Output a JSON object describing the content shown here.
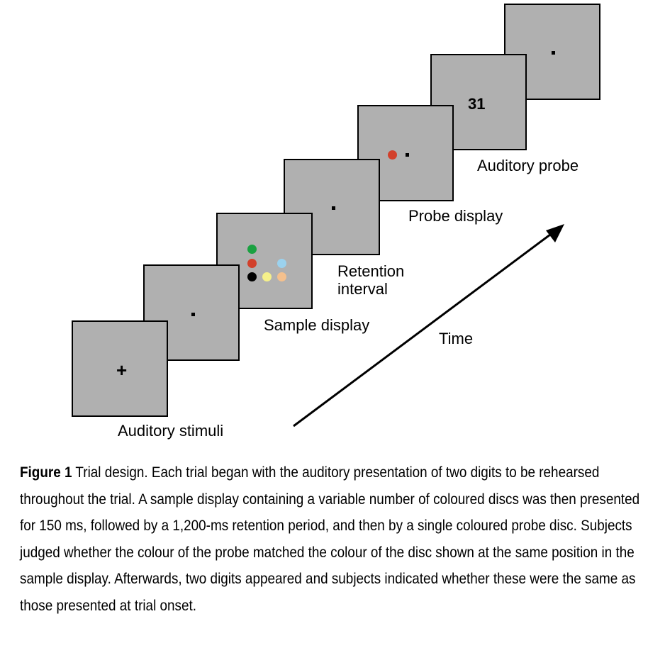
{
  "diagram": {
    "panels": [
      {
        "label": "Auditory stimuli",
        "content": "+"
      },
      {
        "label": "",
        "content": "fixation"
      },
      {
        "label": "Sample display",
        "content": "discs"
      },
      {
        "label": "Retention interval",
        "content": "fixation"
      },
      {
        "label": "Probe display",
        "content": "probe"
      },
      {
        "label": "Auditory probe",
        "content": "31"
      },
      {
        "label": "",
        "content": "fixation"
      }
    ],
    "labels": {
      "auditory_stimuli": "Auditory stimuli",
      "sample_display": "Sample display",
      "retention_line1": "Retention",
      "retention_line2": "interval",
      "probe_display": "Probe display",
      "auditory_probe": "Auditory probe",
      "time": "Time"
    },
    "cross_symbol": "+",
    "probe_digits": "31",
    "sample_disc_colors": {
      "green": "#1aa141",
      "red": "#d2402b",
      "black": "#000000",
      "yellow": "#f5f08a",
      "light_blue": "#9bd2ee",
      "peach": "#f4c08d"
    },
    "probe_disc_color": "#d2402b",
    "panel_color": "#b0b0b0"
  },
  "caption": {
    "title": "Figure 1",
    "text": " Trial design. Each trial began with the auditory presentation of two digits to be rehearsed throughout the trial. A sample display containing a variable number of coloured discs was then presented for 150 ms, followed by a 1,200-ms retention period, and then by a single coloured probe disc. Subjects judged whether the colour of the probe matched the colour of the disc shown at the same position in the sample display. Afterwards, two digits appeared and subjects indicated whether these were the same as those presented at trial onset."
  }
}
